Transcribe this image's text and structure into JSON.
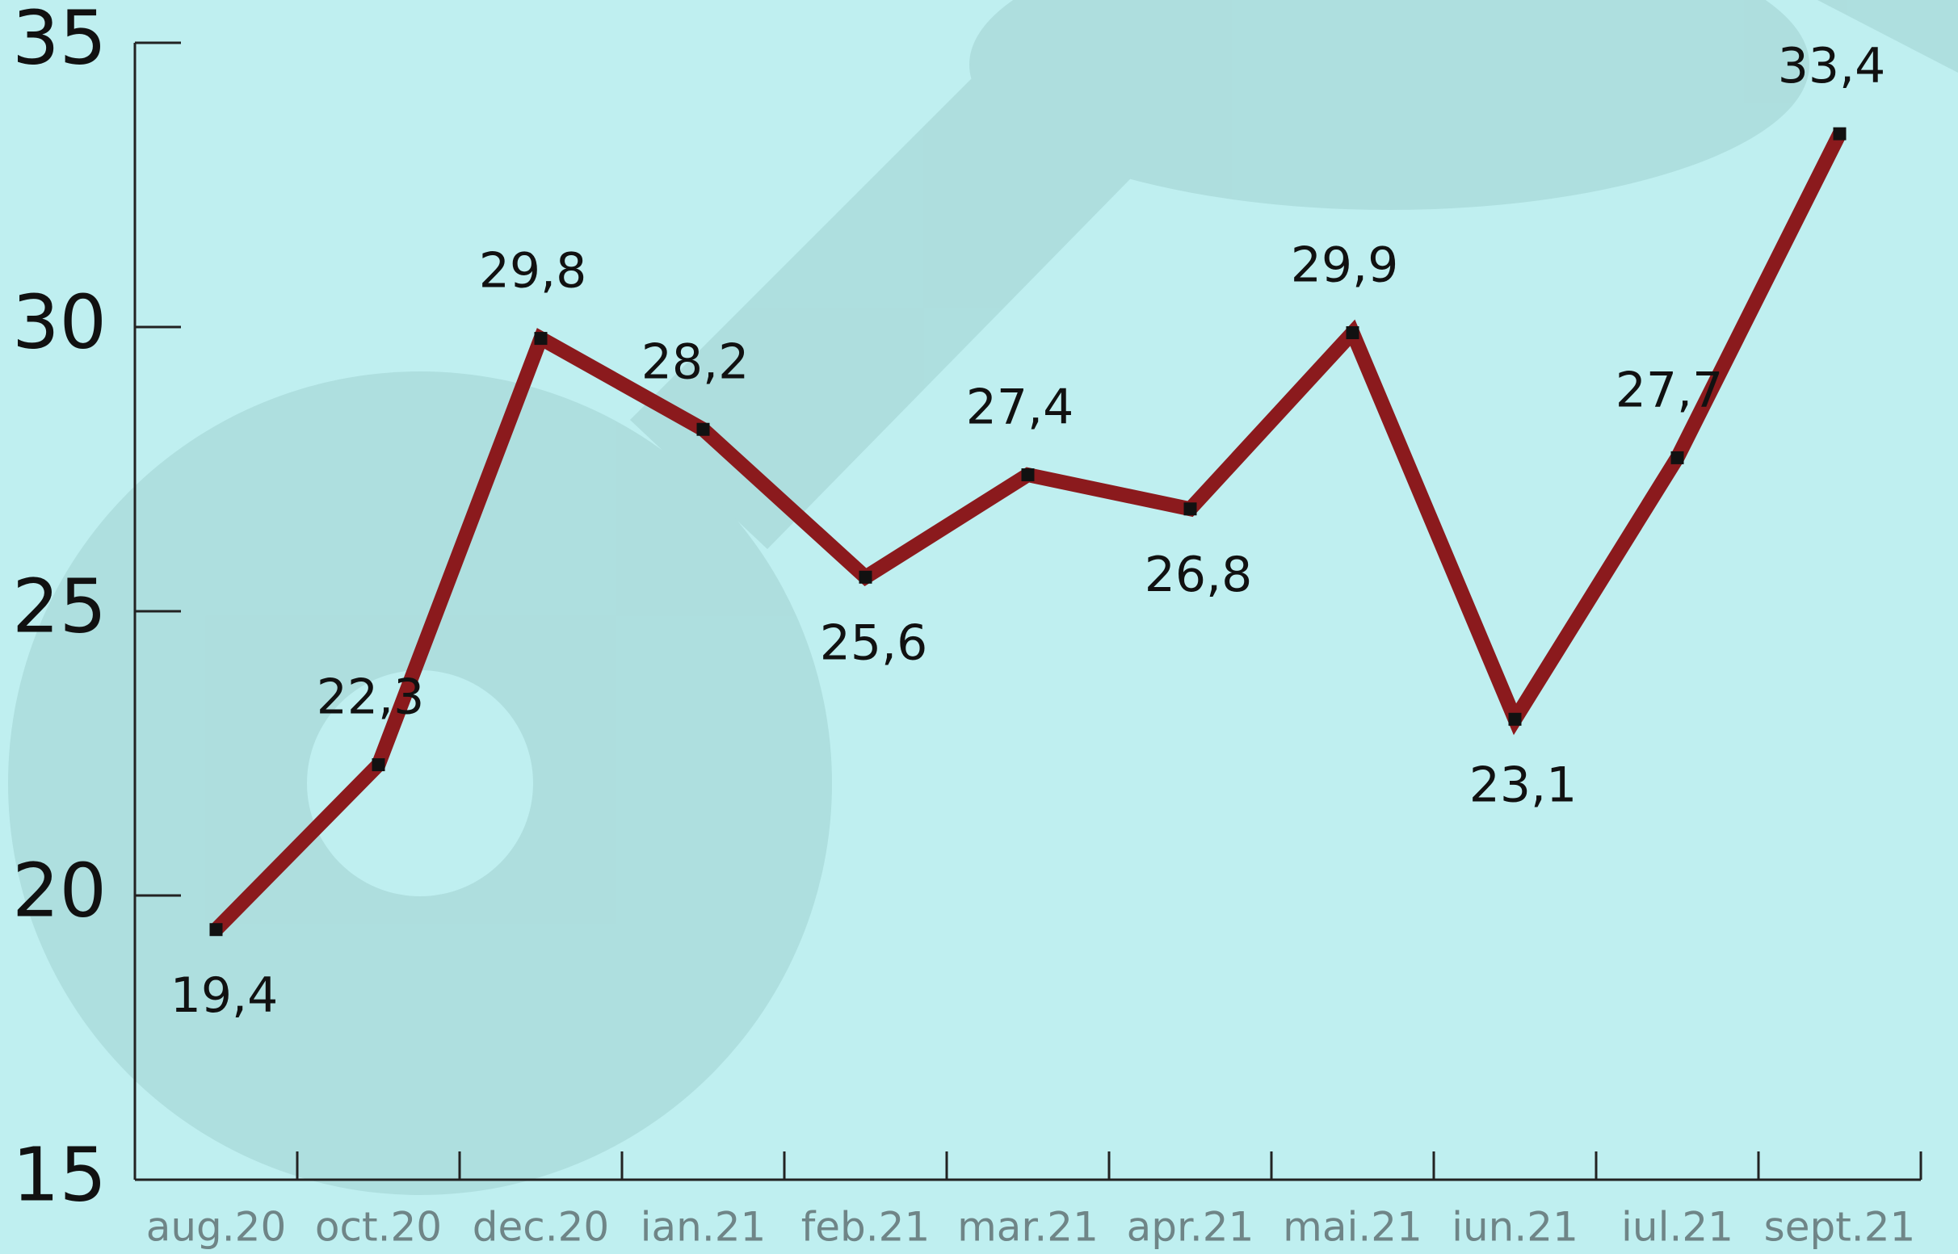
{
  "chart_data": {
    "type": "line",
    "categories": [
      "aug.20",
      "oct.20",
      "dec.20",
      "ian.21",
      "feb.21",
      "mar.21",
      "apr.21",
      "mai.21",
      "iun.21",
      "iul.21",
      "sept.21"
    ],
    "series": [
      {
        "color": "#8b1a1d",
        "values": [
          19.4,
          22.3,
          29.8,
          28.2,
          25.6,
          27.4,
          26.8,
          29.9,
          23.1,
          27.7,
          33.4
        ],
        "value_labels": [
          "19,4",
          "22,3",
          "29,8",
          "28,2",
          "25,6",
          "27,4",
          "26,8",
          "29,9",
          "23,1",
          "27,7",
          "33,4"
        ]
      }
    ],
    "ylim": [
      15,
      35
    ],
    "yticks": [
      15,
      20,
      25,
      30,
      35
    ]
  }
}
